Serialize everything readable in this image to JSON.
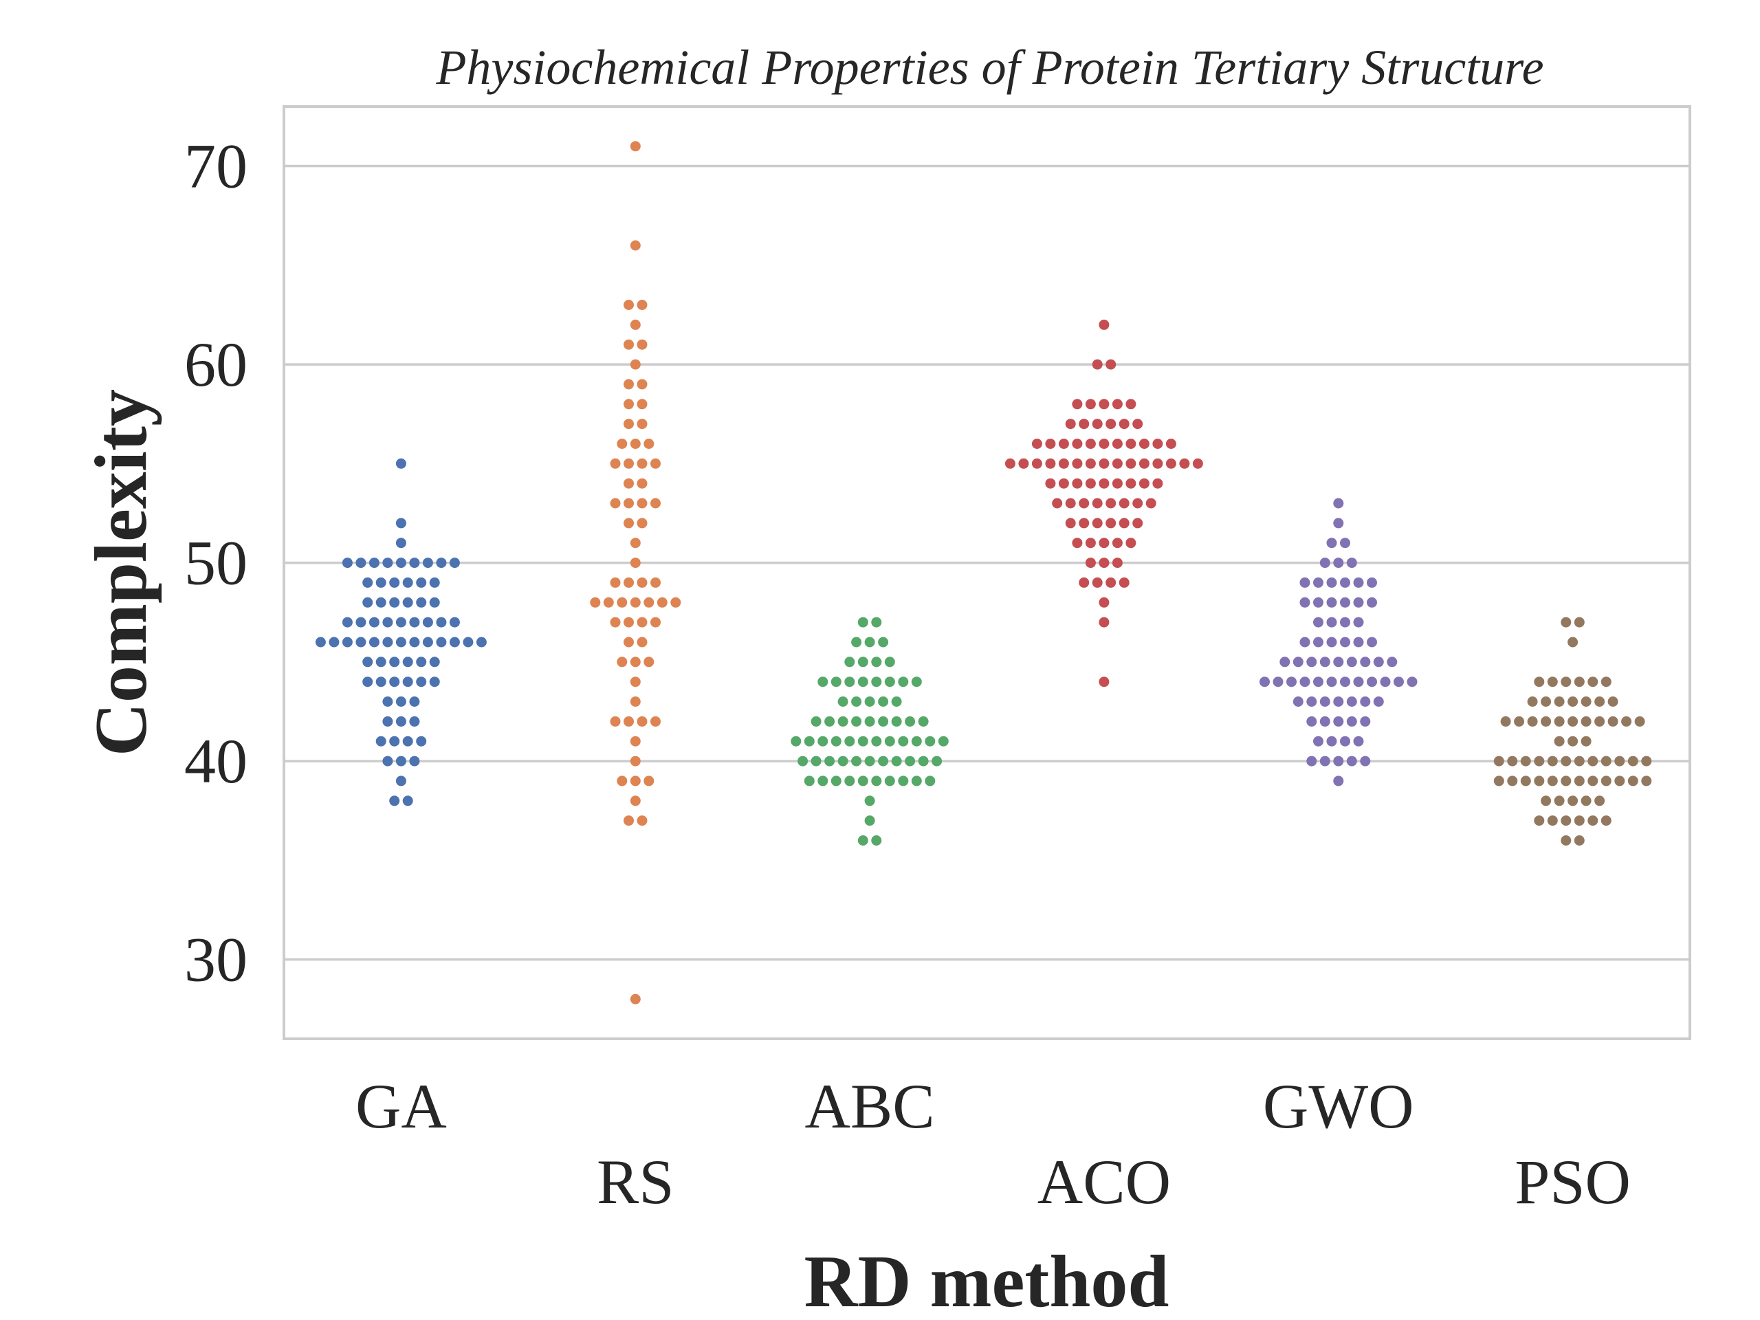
{
  "chart_data": {
    "type": "scatter",
    "style": "swarm",
    "title": "Physiochemical Properties of Protein Tertiary Structure",
    "xlabel": "RD method",
    "ylabel": "Complexity",
    "ylim": [
      26,
      73
    ],
    "yticks": [
      30,
      40,
      50,
      60,
      70
    ],
    "grid": "horizontal",
    "categories": [
      "GA",
      "RS",
      "ABC",
      "ACO",
      "GWO",
      "PSO"
    ],
    "series": [
      {
        "category": "GA",
        "color": "#4c72b0",
        "counts": [
          [
            38,
            2
          ],
          [
            39,
            1
          ],
          [
            40,
            3
          ],
          [
            41,
            4
          ],
          [
            42,
            3
          ],
          [
            43,
            3
          ],
          [
            44,
            6
          ],
          [
            45,
            6
          ],
          [
            46,
            13
          ],
          [
            47,
            9
          ],
          [
            48,
            6
          ],
          [
            49,
            6
          ],
          [
            50,
            9
          ],
          [
            51,
            1
          ],
          [
            52,
            1
          ],
          [
            55,
            1
          ]
        ]
      },
      {
        "category": "RS",
        "color": "#dd8452",
        "counts": [
          [
            28,
            1
          ],
          [
            37,
            2
          ],
          [
            38,
            1
          ],
          [
            39,
            3
          ],
          [
            40,
            1
          ],
          [
            41,
            1
          ],
          [
            42,
            4
          ],
          [
            43,
            1
          ],
          [
            44,
            1
          ],
          [
            45,
            3
          ],
          [
            46,
            2
          ],
          [
            47,
            4
          ],
          [
            48,
            7
          ],
          [
            49,
            4
          ],
          [
            50,
            1
          ],
          [
            51,
            1
          ],
          [
            52,
            2
          ],
          [
            53,
            4
          ],
          [
            54,
            2
          ],
          [
            55,
            4
          ],
          [
            56,
            3
          ],
          [
            57,
            2
          ],
          [
            58,
            2
          ],
          [
            59,
            2
          ],
          [
            60,
            1
          ],
          [
            61,
            2
          ],
          [
            62,
            1
          ],
          [
            63,
            2
          ],
          [
            66,
            1
          ],
          [
            71,
            1
          ]
        ]
      },
      {
        "category": "ABC",
        "color": "#55a868",
        "counts": [
          [
            36,
            2
          ],
          [
            37,
            1
          ],
          [
            38,
            1
          ],
          [
            39,
            10
          ],
          [
            40,
            11
          ],
          [
            41,
            12
          ],
          [
            42,
            9
          ],
          [
            43,
            5
          ],
          [
            44,
            8
          ],
          [
            45,
            4
          ],
          [
            46,
            3
          ],
          [
            47,
            2
          ]
        ]
      },
      {
        "category": "ACO",
        "color": "#c44e52",
        "counts": [
          [
            44,
            1
          ],
          [
            47,
            1
          ],
          [
            48,
            1
          ],
          [
            49,
            4
          ],
          [
            50,
            3
          ],
          [
            51,
            5
          ],
          [
            52,
            6
          ],
          [
            53,
            8
          ],
          [
            54,
            9
          ],
          [
            55,
            15
          ],
          [
            56,
            11
          ],
          [
            57,
            6
          ],
          [
            58,
            5
          ],
          [
            60,
            2
          ],
          [
            62,
            1
          ]
        ]
      },
      {
        "category": "GWO",
        "color": "#8172b3",
        "counts": [
          [
            39,
            1
          ],
          [
            40,
            5
          ],
          [
            41,
            4
          ],
          [
            42,
            5
          ],
          [
            43,
            7
          ],
          [
            44,
            12
          ],
          [
            45,
            9
          ],
          [
            46,
            6
          ],
          [
            47,
            4
          ],
          [
            48,
            6
          ],
          [
            49,
            6
          ],
          [
            50,
            3
          ],
          [
            51,
            2
          ],
          [
            52,
            1
          ],
          [
            53,
            1
          ]
        ]
      },
      {
        "category": "PSO",
        "color": "#937860",
        "counts": [
          [
            36,
            2
          ],
          [
            37,
            6
          ],
          [
            38,
            5
          ],
          [
            39,
            12
          ],
          [
            40,
            12
          ],
          [
            41,
            3
          ],
          [
            42,
            11
          ],
          [
            43,
            7
          ],
          [
            44,
            6
          ],
          [
            46,
            1
          ],
          [
            47,
            2
          ]
        ]
      }
    ]
  }
}
